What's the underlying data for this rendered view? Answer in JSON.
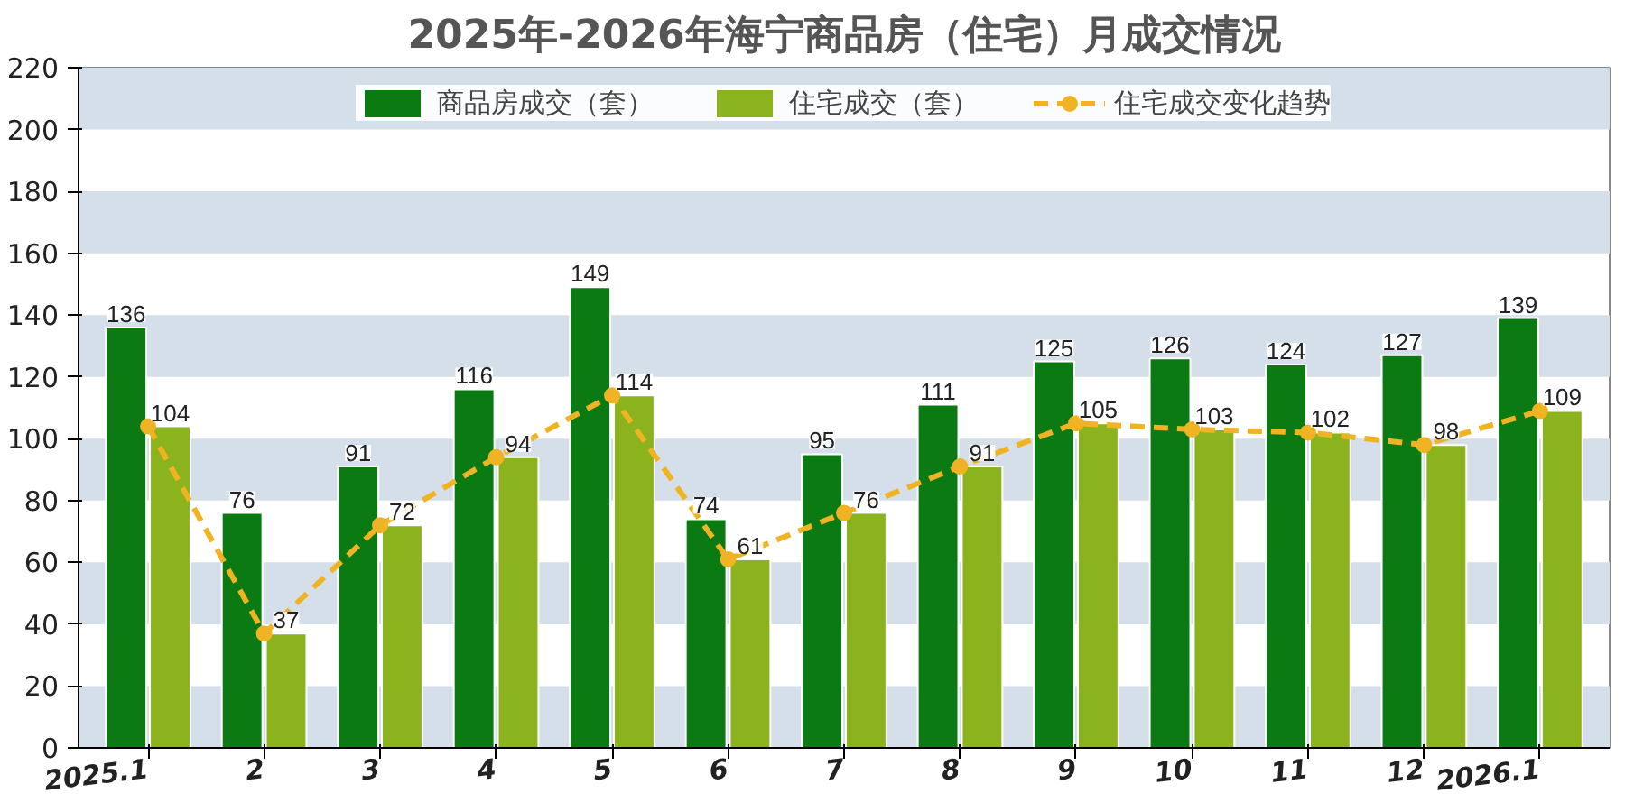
{
  "chart_data": {
    "type": "bar",
    "title": "2025年-2026年海宁商品房（住宅）月成交情况",
    "categories": [
      "2025.1",
      "2",
      "3",
      "4",
      "5",
      "6",
      "7",
      "8",
      "9",
      "10",
      "11",
      "12",
      "2026.1"
    ],
    "series": [
      {
        "name": "商品房成交（套）",
        "color": "#0b7a12",
        "values": [
          136,
          76,
          91,
          116,
          149,
          74,
          95,
          111,
          125,
          126,
          124,
          127,
          139
        ],
        "value_labels": [
          "136",
          "76",
          "91",
          "116",
          "149",
          "74",
          "95",
          "111",
          "125",
          "126",
          "124",
          "127",
          "139"
        ]
      },
      {
        "name": "住宅成交（套）",
        "color": "#8bb31d",
        "values": [
          104,
          37,
          72,
          94,
          114,
          61,
          76,
          91,
          105,
          103,
          102,
          98,
          109
        ],
        "value_labels": [
          "104",
          "37",
          "72",
          "94",
          "114",
          "61",
          "76",
          "91",
          "105",
          "103",
          "102",
          "98",
          "109"
        ]
      },
      {
        "name": "住宅成交变化趋势",
        "type": "line",
        "color": "#f0b323",
        "marker": "circle",
        "line_style": "dashed",
        "values": [
          104,
          37,
          72,
          94,
          114,
          61,
          76,
          91,
          105,
          103,
          102,
          98,
          109
        ]
      }
    ],
    "ylim": [
      0,
      220
    ],
    "yticks": [
      0,
      20,
      40,
      60,
      80,
      100,
      120,
      140,
      160,
      180,
      200,
      220
    ],
    "bands": [
      {
        "axis": "y",
        "from": 0,
        "to": 20,
        "color": "#d4dfea"
      },
      {
        "axis": "y",
        "from": 40,
        "to": 60,
        "color": "#d4dfea"
      },
      {
        "axis": "y",
        "from": 80,
        "to": 100,
        "color": "#d4dfea"
      },
      {
        "axis": "y",
        "from": 120,
        "to": 140,
        "color": "#d4dfea"
      },
      {
        "axis": "y",
        "from": 160,
        "to": 180,
        "color": "#d4dfea"
      },
      {
        "axis": "y",
        "from": 200,
        "to": 220,
        "color": "#d4dfea"
      }
    ],
    "legend": "top"
  }
}
